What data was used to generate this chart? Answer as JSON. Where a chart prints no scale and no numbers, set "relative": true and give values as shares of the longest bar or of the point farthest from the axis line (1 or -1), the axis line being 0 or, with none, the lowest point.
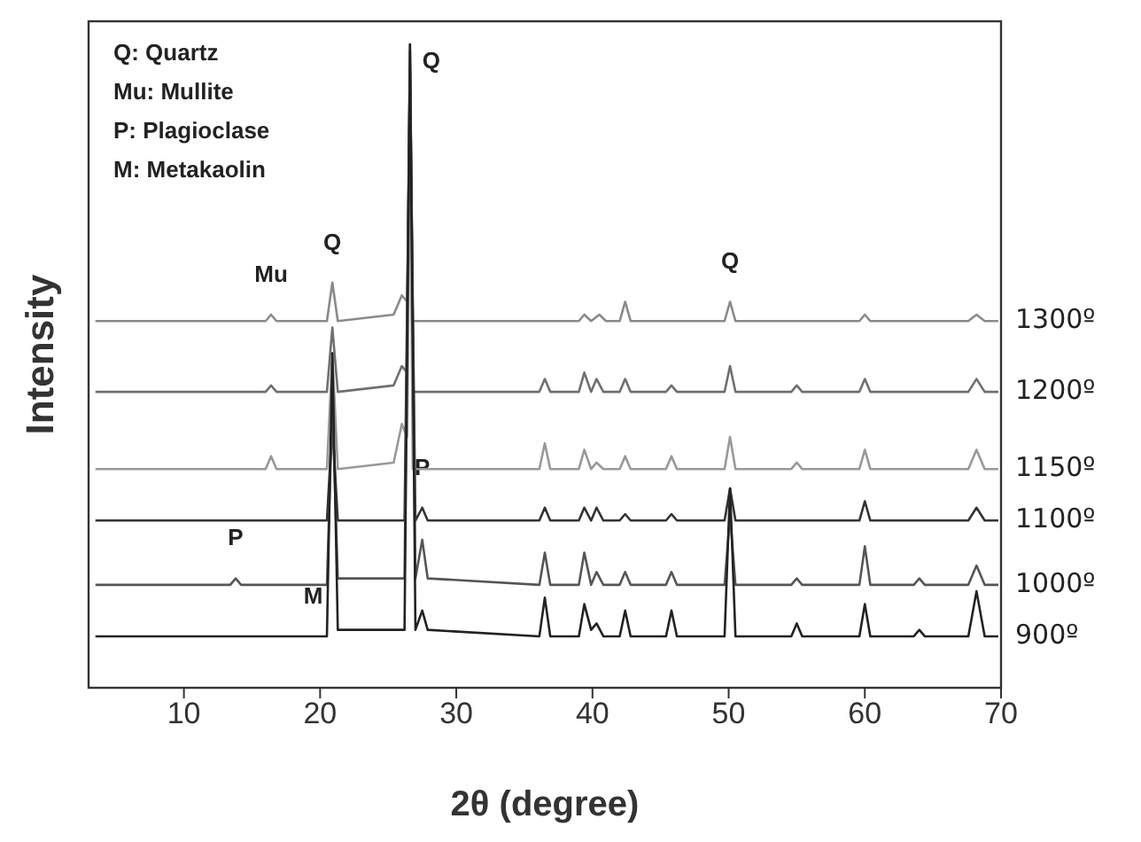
{
  "chart_data": {
    "type": "line",
    "relative": true,
    "xlabel": "2θ (degree)",
    "ylabel": "Intensity",
    "xlim": [
      3,
      70
    ],
    "xticks": [
      10,
      20,
      30,
      40,
      50,
      60,
      70
    ],
    "annotations": [
      "Q: Quartz",
      "Mu: Mullite",
      "P: Plagioclase",
      "M: Metakaolin",
      {
        "text": "Q",
        "x": 20.9,
        "y": 0.63
      },
      {
        "text": "Mu",
        "x": 16.4,
        "y": 0.58
      },
      {
        "text": "Q",
        "x": 26.6,
        "y": 1.0
      },
      {
        "text": "P",
        "x": 13.8,
        "y": 0.17
      },
      {
        "text": "P",
        "x": 27.5,
        "y": 0.28
      },
      {
        "text": "M",
        "x": 19.5,
        "y": 0.08
      },
      {
        "text": "Q",
        "x": 50.1,
        "y": 0.6
      }
    ],
    "series": [
      {
        "name": "1300º",
        "color": "#8a8a8a",
        "x": [
          3.5,
          16,
          16.4,
          16.8,
          20.5,
          20.9,
          21.3,
          25.4,
          26.0,
          26.4,
          26.6,
          26.8,
          39,
          39.4,
          39.9,
          40.5,
          41,
          42,
          42.4,
          42.8,
          49.7,
          50.1,
          50.5,
          59.6,
          60,
          60.4,
          67.6,
          68.2,
          68.8,
          69.8
        ],
        "values": [
          0.57,
          0.57,
          0.58,
          0.57,
          0.57,
          0.63,
          0.57,
          0.58,
          0.61,
          0.6,
          1.0,
          0.57,
          0.57,
          0.58,
          0.57,
          0.58,
          0.57,
          0.57,
          0.6,
          0.57,
          0.57,
          0.6,
          0.57,
          0.57,
          0.58,
          0.57,
          0.57,
          0.58,
          0.57,
          0.57
        ]
      },
      {
        "name": "1200º",
        "color": "#6f6f6f",
        "x": [
          3.5,
          16,
          16.4,
          16.8,
          20.5,
          20.9,
          21.3,
          25.4,
          26.0,
          26.4,
          26.6,
          26.8,
          36.1,
          36.5,
          36.9,
          39,
          39.4,
          39.9,
          40.3,
          40.8,
          42,
          42.4,
          42.8,
          45.4,
          45.8,
          46.2,
          49.7,
          50.1,
          50.5,
          54.6,
          55,
          55.4,
          59.6,
          60,
          60.4,
          67.6,
          68.2,
          68.8,
          69.8
        ],
        "values": [
          0.46,
          0.46,
          0.47,
          0.46,
          0.46,
          0.56,
          0.46,
          0.47,
          0.5,
          0.49,
          0.96,
          0.46,
          0.46,
          0.48,
          0.46,
          0.46,
          0.49,
          0.46,
          0.48,
          0.46,
          0.46,
          0.48,
          0.46,
          0.46,
          0.47,
          0.46,
          0.46,
          0.5,
          0.46,
          0.46,
          0.47,
          0.46,
          0.46,
          0.48,
          0.46,
          0.46,
          0.48,
          0.46,
          0.46
        ]
      },
      {
        "name": "1150º",
        "color": "#999999",
        "x": [
          3.5,
          16,
          16.4,
          16.8,
          20.5,
          20.9,
          21.3,
          25.4,
          26.0,
          26.4,
          26.6,
          26.8,
          36.1,
          36.5,
          36.9,
          39,
          39.4,
          39.9,
          40.3,
          40.8,
          42,
          42.4,
          42.8,
          45.4,
          45.8,
          46.2,
          49.7,
          50.1,
          50.5,
          54.6,
          55,
          55.4,
          59.6,
          60,
          60.4,
          67.6,
          68.2,
          68.8,
          69.8
        ],
        "values": [
          0.34,
          0.34,
          0.36,
          0.34,
          0.34,
          0.52,
          0.34,
          0.35,
          0.41,
          0.39,
          0.9,
          0.34,
          0.34,
          0.38,
          0.34,
          0.34,
          0.37,
          0.34,
          0.35,
          0.34,
          0.34,
          0.36,
          0.34,
          0.34,
          0.36,
          0.34,
          0.34,
          0.39,
          0.34,
          0.34,
          0.35,
          0.34,
          0.34,
          0.37,
          0.34,
          0.34,
          0.37,
          0.34,
          0.34
        ]
      },
      {
        "name": "1100º",
        "color": "#333333",
        "x": [
          3.5,
          20.5,
          20.9,
          21.3,
          26.2,
          26.6,
          27.0,
          27.5,
          27.9,
          36.1,
          36.5,
          36.9,
          39,
          39.4,
          39.9,
          40.3,
          40.8,
          42,
          42.4,
          42.8,
          45.4,
          45.8,
          46.2,
          49.7,
          50.1,
          50.5,
          59.6,
          60,
          60.4,
          67.6,
          68.2,
          68.8,
          69.8
        ],
        "values": [
          0.26,
          0.26,
          0.41,
          0.26,
          0.26,
          0.96,
          0.26,
          0.28,
          0.26,
          0.26,
          0.28,
          0.26,
          0.26,
          0.28,
          0.26,
          0.28,
          0.26,
          0.26,
          0.27,
          0.26,
          0.26,
          0.27,
          0.26,
          0.26,
          0.31,
          0.26,
          0.26,
          0.29,
          0.26,
          0.26,
          0.28,
          0.26,
          0.26
        ]
      },
      {
        "name": "1000º",
        "color": "#555555",
        "x": [
          3.5,
          13.4,
          13.8,
          14.2,
          20.5,
          20.9,
          21.3,
          26.2,
          26.6,
          27.0,
          27.5,
          27.9,
          36.1,
          36.5,
          36.9,
          39,
          39.4,
          39.9,
          40.3,
          40.8,
          42,
          42.4,
          42.8,
          45.4,
          45.8,
          46.2,
          49.7,
          50.1,
          50.5,
          54.6,
          55,
          55.4,
          59.6,
          60,
          60.4,
          63.6,
          64,
          64.4,
          67.6,
          68.2,
          68.8,
          69.8
        ],
        "values": [
          0.16,
          0.16,
          0.17,
          0.16,
          0.16,
          0.44,
          0.17,
          0.17,
          0.99,
          0.17,
          0.23,
          0.17,
          0.16,
          0.21,
          0.16,
          0.16,
          0.21,
          0.16,
          0.18,
          0.16,
          0.16,
          0.18,
          0.16,
          0.16,
          0.18,
          0.16,
          0.16,
          0.27,
          0.16,
          0.16,
          0.17,
          0.16,
          0.16,
          0.22,
          0.16,
          0.16,
          0.17,
          0.16,
          0.16,
          0.19,
          0.16,
          0.16
        ]
      },
      {
        "name": "900º",
        "color": "#222222",
        "x": [
          3.5,
          20.5,
          20.9,
          21.3,
          26.2,
          26.6,
          27.0,
          27.5,
          27.9,
          36.1,
          36.5,
          36.9,
          39,
          39.4,
          39.9,
          40.3,
          40.8,
          42,
          42.4,
          42.8,
          45.4,
          45.8,
          46.2,
          49.7,
          50.1,
          50.5,
          54.6,
          55,
          55.4,
          59.6,
          60,
          60.4,
          63.6,
          64,
          64.4,
          67.6,
          68.2,
          68.8,
          69.8
        ],
        "values": [
          0.08,
          0.08,
          0.52,
          0.09,
          0.09,
          1.0,
          0.09,
          0.12,
          0.09,
          0.08,
          0.14,
          0.08,
          0.08,
          0.13,
          0.09,
          0.1,
          0.08,
          0.08,
          0.12,
          0.08,
          0.08,
          0.12,
          0.08,
          0.08,
          0.31,
          0.08,
          0.08,
          0.1,
          0.08,
          0.08,
          0.13,
          0.08,
          0.08,
          0.09,
          0.08,
          0.08,
          0.15,
          0.08,
          0.08
        ]
      }
    ]
  }
}
